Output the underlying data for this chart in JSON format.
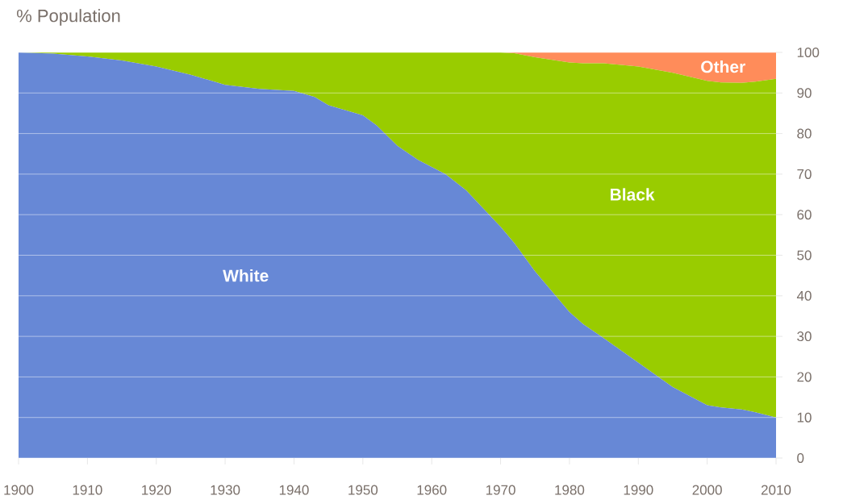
{
  "chart_data": {
    "type": "area",
    "stacked": true,
    "ylabel": "% Population",
    "x": [
      1900,
      1905,
      1910,
      1915,
      1920,
      1925,
      1930,
      1935,
      1940,
      1943,
      1945,
      1950,
      1952,
      1955,
      1958,
      1962,
      1965,
      1970,
      1972,
      1975,
      1980,
      1982,
      1985,
      1990,
      1995,
      2000,
      2002,
      2005,
      2007,
      2010
    ],
    "series": [
      {
        "name": "White",
        "color": "#6788d6",
        "values": [
          100,
          99.7,
          99,
          98,
          96.5,
          94.5,
          92,
          91,
          90.5,
          89,
          87,
          84.5,
          82,
          77,
          73.5,
          70,
          66,
          57,
          53,
          46,
          36,
          33,
          29.5,
          23.5,
          17.5,
          13,
          12.5,
          12,
          11.3,
          10
        ]
      },
      {
        "name": "Black",
        "color": "#99cc00",
        "values": [
          0,
          0.3,
          1,
          2,
          3.5,
          5.5,
          8,
          9,
          9.5,
          11,
          13,
          15.5,
          18,
          23,
          26.5,
          30,
          34,
          43,
          46.8,
          52.8,
          61.5,
          64.3,
          67.8,
          73,
          77.5,
          80,
          80.1,
          80.5,
          81.5,
          83.5
        ]
      },
      {
        "name": "Other",
        "color": "#ff8c5a",
        "values": [
          0,
          0,
          0,
          0,
          0,
          0,
          0,
          0,
          0,
          0,
          0,
          0,
          0,
          0,
          0,
          0,
          0,
          0,
          0.2,
          1.2,
          2.5,
          2.7,
          2.7,
          3.5,
          5,
          7,
          7.4,
          7.5,
          7.2,
          6.5
        ]
      }
    ],
    "xlim": [
      1900,
      2010
    ],
    "ylim": [
      0,
      100
    ],
    "xticks": [
      1900,
      1910,
      1920,
      1930,
      1940,
      1950,
      1960,
      1970,
      1980,
      1990,
      2000,
      2010
    ],
    "yticks": [
      0,
      10,
      20,
      30,
      40,
      50,
      60,
      70,
      80,
      90,
      100
    ],
    "grid": "y"
  }
}
